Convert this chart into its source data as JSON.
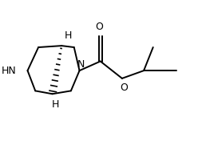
{
  "bg_color": "#ffffff",
  "line_color": "#000000",
  "lw": 1.4,
  "figsize": [
    2.48,
    1.86
  ],
  "dpi": 100,
  "xlim": [
    0,
    2.48
  ],
  "ylim": [
    0,
    1.86
  ]
}
